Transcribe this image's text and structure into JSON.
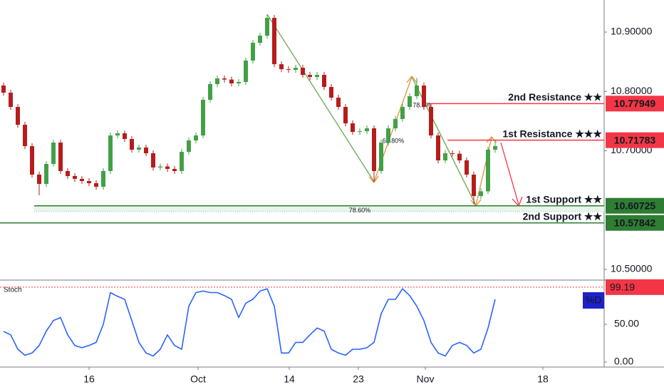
{
  "chart_data": [
    {
      "type": "candlestick",
      "xlim": [
        -0.5,
        84.3
      ],
      "xticks": [
        {
          "value": 12,
          "label": "16"
        },
        {
          "value": 27.3,
          "label": "Oct"
        },
        {
          "value": 40.1,
          "label": "14"
        },
        {
          "value": 49.8,
          "label": "23"
        },
        {
          "value": 59.2,
          "label": "Nov"
        },
        {
          "value": 75.7,
          "label": "18"
        }
      ],
      "ylim": [
        10.482,
        10.9541
      ],
      "yticks": [
        {
          "value": 10.5,
          "label": "10.50000"
        },
        {
          "value": 10.7,
          "label": "10.70000"
        },
        {
          "value": 10.8,
          "label": "10.80000"
        },
        {
          "value": 10.9,
          "label": "10.90000"
        }
      ],
      "candles": {
        "up_color": "#43a047",
        "down_color": "#b71c1c",
        "x": [
          0,
          1,
          2,
          3,
          4,
          5,
          6,
          7,
          8,
          9,
          10,
          11,
          12,
          13,
          14,
          15,
          16,
          17,
          18,
          19,
          20,
          21,
          22,
          23,
          24,
          25,
          26,
          27,
          28,
          29,
          30,
          31,
          32,
          33,
          34,
          35,
          36,
          37,
          38,
          39,
          40,
          41,
          42,
          43,
          44,
          45,
          46,
          47,
          48,
          49,
          50,
          51,
          52,
          53,
          54,
          55,
          56,
          57,
          58,
          59,
          60,
          61,
          62,
          63,
          64,
          65,
          66,
          67,
          68,
          69
        ],
        "open": [
          10.81,
          10.7979,
          10.7739,
          10.7438,
          10.7078,
          10.6598,
          10.6441,
          10.6778,
          10.7138,
          10.6658,
          10.6574,
          10.6526,
          10.6489,
          10.6453,
          10.6393,
          10.6658,
          10.7258,
          10.7294,
          10.7198,
          10.7018,
          10.7054,
          10.6958,
          10.6718,
          10.6735,
          10.6694,
          10.6658,
          10.6982,
          10.7174,
          10.7258,
          10.7859,
          10.8123,
          10.8219,
          10.82,
          10.8135,
          10.8159,
          10.852,
          10.882,
          10.894,
          10.924,
          10.8459,
          10.8375,
          10.8363,
          10.8399,
          10.8279,
          10.8243,
          10.8279,
          10.8075,
          10.7895,
          10.7739,
          10.7462,
          10.7318,
          10.733,
          10.7378,
          10.6658,
          10.7138,
          10.7378,
          10.7535,
          10.7739,
          10.7919,
          10.8099,
          10.7739,
          10.7258,
          10.6838,
          10.6958,
          10.695,
          10.6838,
          10.6598,
          10.6237,
          10.6317,
          10.7018
        ],
        "high": [
          10.815,
          10.8029,
          10.7789,
          10.7488,
          10.7128,
          10.6648,
          10.6828,
          10.7188,
          10.7188,
          10.6708,
          10.6624,
          10.6576,
          10.6539,
          10.6503,
          10.6708,
          10.7308,
          10.7344,
          10.7344,
          10.7248,
          10.7104,
          10.7104,
          10.7008,
          10.6785,
          10.6785,
          10.6744,
          10.7032,
          10.7224,
          10.7308,
          10.7909,
          10.8173,
          10.8269,
          10.8269,
          10.825,
          10.8209,
          10.857,
          10.887,
          10.899,
          10.929,
          10.929,
          10.8509,
          10.8425,
          10.8449,
          10.8449,
          10.8329,
          10.8329,
          10.8329,
          10.8125,
          10.7945,
          10.7789,
          10.7512,
          10.738,
          10.7428,
          10.7428,
          10.7188,
          10.7428,
          10.7585,
          10.7789,
          10.7969,
          10.823,
          10.8149,
          10.7789,
          10.7308,
          10.7008,
          10.7008,
          10.7,
          10.6888,
          10.6648,
          10.6367,
          10.7068,
          10.7178
        ],
        "low": [
          10.7929,
          10.7689,
          10.7388,
          10.7028,
          10.6548,
          10.625,
          10.6391,
          10.6728,
          10.6608,
          10.6524,
          10.6476,
          10.6439,
          10.6403,
          10.6343,
          10.6343,
          10.6608,
          10.7208,
          10.7148,
          10.6968,
          10.6968,
          10.6908,
          10.6668,
          10.6668,
          10.6644,
          10.6608,
          10.6608,
          10.6932,
          10.7124,
          10.7208,
          10.7809,
          10.8073,
          10.815,
          10.8085,
          10.8085,
          10.8109,
          10.847,
          10.877,
          10.889,
          10.8409,
          10.8325,
          10.8313,
          10.8313,
          10.8229,
          10.8193,
          10.8193,
          10.8025,
          10.7845,
          10.7689,
          10.7412,
          10.7268,
          10.7268,
          10.728,
          10.648,
          10.6608,
          10.7088,
          10.7328,
          10.7485,
          10.7689,
          10.7869,
          10.7689,
          10.7208,
          10.6788,
          10.6788,
          10.69,
          10.6788,
          10.6548,
          10.61,
          10.6187,
          10.6267,
          10.6968
        ],
        "close": [
          10.7979,
          10.7739,
          10.7438,
          10.7078,
          10.6598,
          10.6441,
          10.6778,
          10.7138,
          10.6658,
          10.6574,
          10.6526,
          10.6489,
          10.6453,
          10.6393,
          10.6658,
          10.7258,
          10.7294,
          10.7198,
          10.7018,
          10.7054,
          10.6958,
          10.6718,
          10.6735,
          10.6694,
          10.6658,
          10.6982,
          10.7174,
          10.7258,
          10.7859,
          10.8123,
          10.8219,
          10.82,
          10.8135,
          10.8159,
          10.852,
          10.882,
          10.894,
          10.924,
          10.8459,
          10.8375,
          10.8363,
          10.8399,
          10.8279,
          10.8243,
          10.8279,
          10.8075,
          10.7895,
          10.7739,
          10.7462,
          10.7318,
          10.733,
          10.7378,
          10.6658,
          10.7138,
          10.7378,
          10.7535,
          10.7739,
          10.7919,
          10.8099,
          10.7739,
          10.7258,
          10.6838,
          10.6958,
          10.695,
          10.6838,
          10.6598,
          10.6237,
          10.6317,
          10.7018,
          10.7078
        ]
      },
      "levels": [
        {
          "name": "2nd Resistance ★★",
          "value": 10.77949,
          "color": "#f23645"
        },
        {
          "name": "1st Resistance ★★★",
          "value": 10.71783,
          "color": "#f23645"
        },
        {
          "name": "1st Support ★★",
          "value": 10.60725,
          "color": "#2e7d32"
        },
        {
          "name": "2nd Support ★★",
          "value": 10.57842,
          "color": "#2e7d32"
        }
      ],
      "annotations": [
        "78.60%",
        "78.6%",
        "61.80%"
      ]
    },
    {
      "type": "line",
      "title": "Stoch",
      "ylim": [
        -6.6,
        108.5
      ],
      "yticks": [
        {
          "value": 0,
          "label": "0.00"
        },
        {
          "value": 50,
          "label": "50.00"
        }
      ],
      "level": 99.19,
      "level_color": "#f23645",
      "series": [
        {
          "name": "%D",
          "color": "#2962ff",
          "values": [
            40.6,
            36,
            17,
            9,
            12,
            22,
            41,
            55,
            59,
            36,
            22,
            19,
            22,
            26,
            50,
            92,
            87,
            83,
            55,
            26,
            12,
            8,
            17,
            36,
            22,
            17,
            74,
            92,
            94,
            92,
            92,
            88,
            83,
            59,
            78,
            83,
            94,
            97,
            74,
            12,
            12,
            26,
            26,
            36,
            45,
            41,
            17,
            12,
            9,
            17,
            17,
            19,
            26,
            64,
            83,
            83,
            97,
            88,
            74,
            55,
            26,
            12,
            8,
            22,
            26,
            22,
            12,
            17,
            45,
            83
          ]
        }
      ]
    }
  ]
}
